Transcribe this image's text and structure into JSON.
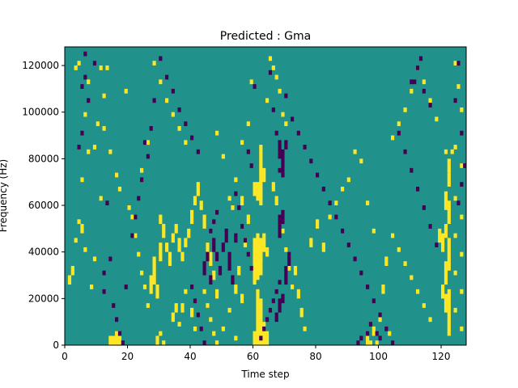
{
  "chart_data": {
    "type": "heatmap",
    "title": "Predicted : Gma",
    "xlabel": "Time step",
    "ylabel": "Frequency (Hz)",
    "xlim": [
      0,
      128
    ],
    "ylim": [
      0,
      128000
    ],
    "x_ticks": [
      0,
      20,
      40,
      60,
      80,
      100,
      120
    ],
    "y_ticks": [
      0,
      20000,
      40000,
      60000,
      80000,
      100000,
      120000
    ],
    "x_tick_labels": [
      "0",
      "20",
      "40",
      "60",
      "80",
      "100",
      "120"
    ],
    "y_tick_labels": [
      "0",
      "20000",
      "40000",
      "60000",
      "80000",
      "100000",
      "120000"
    ],
    "grid": false,
    "value_levels": [
      -1,
      0,
      1
    ],
    "colors": {
      "low": "#440154",
      "mid": "#21918c",
      "high": "#fde725"
    },
    "dominant_value": 0,
    "bin_size_hz": 2000,
    "high_cells": [
      [
        60,
        0,
        6
      ],
      [
        61,
        0,
        24
      ],
      [
        62,
        0,
        20
      ],
      [
        63,
        0,
        10
      ],
      [
        64,
        0,
        6
      ],
      [
        60,
        26,
        16
      ],
      [
        61,
        28,
        14
      ],
      [
        62,
        30,
        10
      ],
      [
        60,
        40,
        6
      ],
      [
        61,
        40,
        8
      ],
      [
        62,
        36,
        10
      ],
      [
        61,
        62,
        8
      ],
      [
        62,
        60,
        12
      ],
      [
        60,
        64,
        6
      ],
      [
        62,
        72,
        14
      ],
      [
        63,
        70,
        6
      ],
      [
        62,
        38,
        4
      ],
      [
        63,
        40,
        8
      ],
      [
        64,
        38,
        4
      ],
      [
        122,
        4,
        20
      ],
      [
        121,
        14,
        8
      ],
      [
        120,
        20,
        6
      ],
      [
        121,
        26,
        10
      ],
      [
        122,
        32,
        14
      ],
      [
        120,
        40,
        8
      ],
      [
        119,
        44,
        6
      ],
      [
        121,
        46,
        6
      ],
      [
        122,
        52,
        10
      ],
      [
        121,
        58,
        8
      ],
      [
        122,
        68,
        6
      ],
      [
        122,
        74,
        6
      ],
      [
        121,
        82,
        2
      ],
      [
        123,
        82,
        2
      ],
      [
        27,
        22,
        8
      ],
      [
        28,
        26,
        12
      ],
      [
        29,
        20,
        6
      ],
      [
        30,
        36,
        8
      ],
      [
        31,
        46,
        6
      ],
      [
        30,
        52,
        4
      ],
      [
        32,
        40,
        4
      ],
      [
        33,
        34,
        6
      ],
      [
        34,
        44,
        4
      ],
      [
        35,
        48,
        4
      ],
      [
        36,
        40,
        6
      ],
      [
        37,
        36,
        4
      ],
      [
        38,
        42,
        4
      ],
      [
        39,
        46,
        4
      ],
      [
        40,
        52,
        6
      ],
      [
        41,
        60,
        4
      ],
      [
        42,
        64,
        6
      ],
      [
        43,
        58,
        4
      ],
      [
        44,
        50,
        6
      ],
      [
        45,
        40,
        4
      ],
      [
        46,
        34,
        6
      ],
      [
        47,
        28,
        4
      ],
      [
        48,
        20,
        4
      ],
      [
        14,
        0,
        4
      ],
      [
        15,
        0,
        4
      ],
      [
        16,
        0,
        4
      ],
      [
        17,
        0,
        4
      ],
      [
        16,
        4,
        2
      ],
      [
        29,
        0,
        4
      ],
      [
        30,
        4,
        2
      ],
      [
        31,
        0,
        2
      ],
      [
        34,
        10,
        4
      ],
      [
        35,
        14,
        4
      ],
      [
        36,
        8,
        2
      ],
      [
        37,
        14,
        4
      ],
      [
        38,
        22,
        2
      ],
      [
        40,
        12,
        4
      ],
      [
        41,
        6,
        2
      ],
      [
        57,
        42,
        4
      ],
      [
        58,
        52,
        4
      ],
      [
        56,
        60,
        4
      ],
      [
        55,
        30,
        4
      ],
      [
        54,
        22,
        4
      ],
      [
        56,
        18,
        4
      ],
      [
        73,
        30,
        4
      ],
      [
        74,
        20,
        4
      ],
      [
        75,
        12,
        4
      ],
      [
        76,
        6,
        2
      ],
      [
        78,
        42,
        4
      ],
      [
        80,
        50,
        4
      ],
      [
        82,
        40,
        4
      ],
      [
        96,
        0,
        4
      ],
      [
        97,
        0,
        2
      ],
      [
        98,
        4,
        4
      ],
      [
        99,
        0,
        2
      ],
      [
        100,
        10,
        2
      ],
      [
        101,
        22,
        4
      ],
      [
        102,
        34,
        4
      ],
      [
        103,
        4,
        2
      ],
      [
        1,
        26,
        4
      ],
      [
        2,
        30,
        4
      ],
      [
        3,
        44,
        2
      ],
      [
        4,
        52,
        2
      ],
      [
        5,
        48,
        4
      ],
      [
        6,
        40,
        2
      ],
      [
        8,
        24,
        2
      ],
      [
        9,
        36,
        2
      ],
      [
        5,
        70,
        2
      ],
      [
        6,
        98,
        2
      ],
      [
        7,
        82,
        2
      ],
      [
        9,
        84,
        2
      ],
      [
        10,
        94,
        2
      ],
      [
        11,
        62,
        2
      ],
      [
        12,
        106,
        2
      ],
      [
        13,
        118,
        2
      ],
      [
        3,
        118,
        2
      ],
      [
        4,
        120,
        2
      ],
      [
        7,
        112,
        2
      ],
      [
        11,
        118,
        2
      ],
      [
        12,
        92,
        2
      ],
      [
        14,
        82,
        2
      ],
      [
        16,
        72,
        2
      ],
      [
        17,
        66,
        2
      ],
      [
        19,
        108,
        2
      ],
      [
        20,
        58,
        2
      ],
      [
        21,
        54,
        2
      ],
      [
        22,
        46,
        2
      ],
      [
        23,
        38,
        2
      ],
      [
        24,
        30,
        2
      ],
      [
        25,
        24,
        2
      ],
      [
        26,
        16,
        2
      ],
      [
        24,
        74,
        2
      ],
      [
        26,
        86,
        2
      ],
      [
        28,
        120,
        2
      ],
      [
        30,
        112,
        2
      ],
      [
        32,
        104,
        2
      ],
      [
        34,
        98,
        2
      ],
      [
        36,
        92,
        2
      ],
      [
        38,
        86,
        2
      ],
      [
        48,
        90,
        2
      ],
      [
        50,
        80,
        2
      ],
      [
        52,
        62,
        2
      ],
      [
        53,
        58,
        2
      ],
      [
        54,
        70,
        2
      ],
      [
        56,
        86,
        2
      ],
      [
        58,
        94,
        2
      ],
      [
        59,
        112,
        2
      ],
      [
        64,
        104,
        2
      ],
      [
        65,
        122,
        2
      ],
      [
        66,
        118,
        2
      ],
      [
        67,
        114,
        2
      ],
      [
        68,
        108,
        2
      ],
      [
        69,
        98,
        2
      ],
      [
        70,
        94,
        2
      ],
      [
        84,
        54,
        2
      ],
      [
        86,
        60,
        2
      ],
      [
        88,
        66,
        2
      ],
      [
        90,
        70,
        2
      ],
      [
        92,
        82,
        2
      ],
      [
        94,
        78,
        2
      ],
      [
        96,
        60,
        2
      ],
      [
        98,
        48,
        2
      ],
      [
        104,
        46,
        2
      ],
      [
        106,
        40,
        2
      ],
      [
        108,
        34,
        2
      ],
      [
        110,
        28,
        2
      ],
      [
        112,
        22,
        2
      ],
      [
        114,
        16,
        2
      ],
      [
        116,
        10,
        2
      ],
      [
        104,
        88,
        2
      ],
      [
        106,
        94,
        2
      ],
      [
        108,
        100,
        2
      ],
      [
        110,
        108,
        2
      ],
      [
        112,
        118,
        2
      ],
      [
        114,
        112,
        2
      ],
      [
        116,
        104,
        2
      ],
      [
        118,
        96,
        2
      ],
      [
        124,
        120,
        2
      ],
      [
        125,
        110,
        2
      ],
      [
        126,
        100,
        2
      ],
      [
        124,
        84,
        2
      ],
      [
        126,
        76,
        2
      ],
      [
        124,
        62,
        2
      ],
      [
        126,
        54,
        2
      ],
      [
        124,
        46,
        2
      ],
      [
        126,
        38,
        2
      ],
      [
        124,
        30,
        2
      ],
      [
        126,
        22,
        2
      ],
      [
        124,
        14,
        2
      ],
      [
        126,
        6,
        2
      ],
      [
        66,
        66,
        4
      ],
      [
        67,
        60,
        4
      ],
      [
        68,
        54,
        2
      ],
      [
        69,
        48,
        2
      ],
      [
        70,
        40,
        2
      ],
      [
        71,
        32,
        2
      ],
      [
        72,
        24,
        2
      ],
      [
        44,
        22,
        2
      ],
      [
        45,
        16,
        2
      ],
      [
        46,
        10,
        2
      ],
      [
        47,
        4,
        2
      ],
      [
        48,
        0,
        2
      ],
      [
        50,
        6,
        2
      ],
      [
        52,
        14,
        2
      ],
      [
        54,
        2,
        2
      ]
    ],
    "low_cells": [
      [
        67,
        10,
        4
      ],
      [
        68,
        14,
        6
      ],
      [
        69,
        18,
        4
      ],
      [
        70,
        26,
        8
      ],
      [
        71,
        34,
        6
      ],
      [
        68,
        46,
        10
      ],
      [
        69,
        52,
        6
      ],
      [
        68,
        80,
        8
      ],
      [
        69,
        72,
        12
      ],
      [
        70,
        84,
        4
      ],
      [
        67,
        90,
        2
      ],
      [
        68,
        74,
        2
      ],
      [
        50,
        40,
        4
      ],
      [
        51,
        44,
        6
      ],
      [
        52,
        32,
        8
      ],
      [
        53,
        26,
        4
      ],
      [
        54,
        44,
        4
      ],
      [
        49,
        30,
        4
      ],
      [
        48,
        36,
        4
      ],
      [
        44,
        30,
        6
      ],
      [
        45,
        36,
        4
      ],
      [
        46,
        26,
        4
      ],
      [
        47,
        40,
        6
      ],
      [
        5,
        110,
        2
      ],
      [
        6,
        124,
        2
      ],
      [
        6,
        114,
        2
      ],
      [
        7,
        104,
        2
      ],
      [
        9,
        120,
        2
      ],
      [
        4,
        84,
        2
      ],
      [
        5,
        90,
        2
      ],
      [
        13,
        60,
        2
      ],
      [
        14,
        36,
        2
      ],
      [
        12,
        30,
        2
      ],
      [
        12,
        22,
        2
      ],
      [
        15,
        16,
        2
      ],
      [
        16,
        10,
        2
      ],
      [
        17,
        4,
        2
      ],
      [
        18,
        0,
        2
      ],
      [
        19,
        24,
        2
      ],
      [
        21,
        46,
        2
      ],
      [
        22,
        54,
        2
      ],
      [
        23,
        62,
        2
      ],
      [
        24,
        70,
        2
      ],
      [
        25,
        86,
        2
      ],
      [
        26,
        80,
        2
      ],
      [
        27,
        92,
        2
      ],
      [
        28,
        104,
        2
      ],
      [
        30,
        122,
        2
      ],
      [
        32,
        114,
        2
      ],
      [
        34,
        108,
        2
      ],
      [
        36,
        100,
        2
      ],
      [
        38,
        94,
        2
      ],
      [
        40,
        88,
        2
      ],
      [
        42,
        82,
        2
      ],
      [
        58,
        82,
        2
      ],
      [
        59,
        76,
        2
      ],
      [
        60,
        110,
        2
      ],
      [
        65,
        116,
        2
      ],
      [
        66,
        100,
        2
      ],
      [
        70,
        106,
        2
      ],
      [
        72,
        96,
        2
      ],
      [
        74,
        90,
        2
      ],
      [
        76,
        84,
        2
      ],
      [
        78,
        78,
        2
      ],
      [
        80,
        72,
        2
      ],
      [
        82,
        66,
        2
      ],
      [
        84,
        60,
        2
      ],
      [
        86,
        54,
        2
      ],
      [
        88,
        48,
        2
      ],
      [
        90,
        42,
        2
      ],
      [
        92,
        36,
        2
      ],
      [
        94,
        30,
        2
      ],
      [
        96,
        24,
        2
      ],
      [
        98,
        18,
        2
      ],
      [
        100,
        12,
        2
      ],
      [
        102,
        6,
        2
      ],
      [
        104,
        0,
        2
      ],
      [
        96,
        4,
        2
      ],
      [
        97,
        8,
        2
      ],
      [
        93,
        0,
        2
      ],
      [
        94,
        2,
        2
      ],
      [
        99,
        4,
        2
      ],
      [
        100,
        2,
        2
      ],
      [
        106,
        90,
        2
      ],
      [
        108,
        82,
        2
      ],
      [
        110,
        74,
        2
      ],
      [
        112,
        66,
        2
      ],
      [
        114,
        58,
        2
      ],
      [
        116,
        50,
        2
      ],
      [
        118,
        42,
        2
      ],
      [
        110,
        112,
        2
      ],
      [
        111,
        112,
        2
      ],
      [
        112,
        118,
        2
      ],
      [
        113,
        122,
        2
      ],
      [
        114,
        108,
        2
      ],
      [
        116,
        102,
        2
      ],
      [
        124,
        104,
        2
      ],
      [
        125,
        120,
        2
      ],
      [
        126,
        90,
        2
      ],
      [
        127,
        76,
        2
      ],
      [
        126,
        68,
        2
      ],
      [
        125,
        60,
        2
      ],
      [
        62,
        2,
        2
      ],
      [
        63,
        6,
        2
      ],
      [
        64,
        10,
        2
      ],
      [
        65,
        14,
        2
      ],
      [
        66,
        18,
        2
      ],
      [
        67,
        22,
        2
      ],
      [
        68,
        26,
        2
      ],
      [
        40,
        24,
        2
      ],
      [
        41,
        18,
        2
      ],
      [
        42,
        12,
        2
      ],
      [
        43,
        6,
        2
      ],
      [
        44,
        0,
        2
      ],
      [
        46,
        48,
        2
      ],
      [
        47,
        52,
        2
      ],
      [
        48,
        56,
        2
      ],
      [
        54,
        64,
        2
      ],
      [
        55,
        58,
        2
      ],
      [
        56,
        50,
        2
      ],
      [
        57,
        44,
        2
      ],
      [
        58,
        38,
        2
      ],
      [
        59,
        32,
        2
      ]
    ]
  }
}
